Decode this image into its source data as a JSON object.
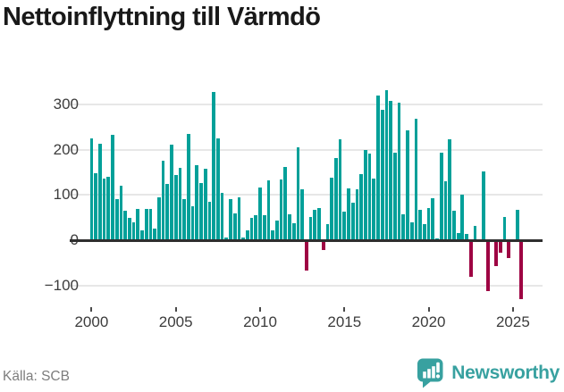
{
  "title": "Nettoinflyttning till Värmdö",
  "footer": {
    "source": "Källa: SCB",
    "brand": "Newsworthy"
  },
  "chart_data": {
    "type": "bar",
    "title": "Nettoinflyttning till Värmdö",
    "x_unit": "quarter",
    "start_period": "2000-Q1",
    "end_period": "2025-Q3",
    "values": [
      225,
      148,
      213,
      137,
      140,
      232,
      90,
      120,
      65,
      50,
      40,
      70,
      22,
      70,
      70,
      26,
      95,
      176,
      124,
      212,
      144,
      160,
      91,
      235,
      75,
      166,
      126,
      157,
      85,
      328,
      225,
      105,
      6,
      90,
      59,
      95,
      6,
      21,
      49,
      55,
      116,
      55,
      133,
      21,
      44,
      134,
      162,
      57,
      38,
      205,
      112,
      -68,
      51,
      67,
      72,
      -22,
      36,
      138,
      182,
      223,
      64,
      114,
      82,
      112,
      146,
      200,
      192,
      136,
      320,
      288,
      332,
      307,
      193,
      304,
      57,
      243,
      39,
      269,
      67,
      36,
      72,
      93,
      3,
      193,
      130,
      223,
      65,
      16,
      101,
      13,
      -80,
      32,
      0,
      151,
      -113,
      0,
      -58,
      -28,
      52,
      -40,
      0,
      67,
      -130
    ],
    "x_tick_labels": [
      "2000",
      "2005",
      "2010",
      "2015",
      "2020",
      "2025"
    ],
    "y_tick_labels": [
      "300",
      "200",
      "100",
      "0",
      "−100"
    ],
    "y_ticks": [
      300,
      200,
      100,
      0,
      -100
    ],
    "ylim": [
      -150,
      335
    ],
    "grid": "horizontal",
    "legend": "none",
    "colors": {
      "positive": "#01a099",
      "negative": "#9e0443",
      "axis_text": "#3c3c3c",
      "zero_line": "#2e2e2e",
      "gridline": "#e7e7e7"
    }
  }
}
